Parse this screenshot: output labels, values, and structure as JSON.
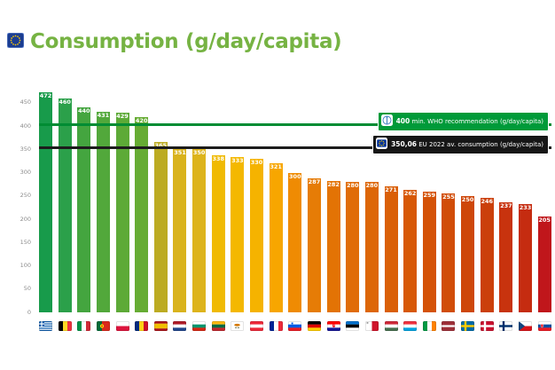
{
  "title": {
    "text": "Consumption (g/day/capita)"
  },
  "chart_data": {
    "type": "bar",
    "title": "Consumption (g/day/capita)",
    "unit": "g/day/capita",
    "categories": [
      "Greece",
      "Belgium",
      "Italy",
      "Portugal",
      "Poland",
      "Romania",
      "Spain",
      "Netherlands",
      "Bulgaria",
      "Lithuania",
      "Cyprus",
      "Austria",
      "France",
      "Slovenia",
      "Germany",
      "Croatia",
      "Estonia",
      "Malta",
      "Hungary",
      "Luxembourg",
      "Ireland",
      "Latvia",
      "Sweden",
      "Denmark",
      "Finland",
      "Czechia",
      "Slovakia"
    ],
    "values": [
      472,
      460,
      440,
      431,
      429,
      420,
      365,
      351,
      350,
      338,
      333,
      330,
      321,
      300,
      287,
      282,
      280,
      280,
      271,
      262,
      259,
      255,
      250,
      246,
      237,
      233,
      205
    ],
    "bar_colors": [
      "#189b4b",
      "#2ba04a",
      "#44a53f",
      "#52a83b",
      "#5daa37",
      "#66ac33",
      "#bcab22",
      "#d9b31d",
      "#ddb41c",
      "#f0ba02",
      "#f4b800",
      "#f5b300",
      "#f7a600",
      "#ef8b03",
      "#e67c06",
      "#e37305",
      "#e06c08",
      "#dd6607",
      "#da5f06",
      "#d75806",
      "#d45207",
      "#d14d08",
      "#ce4709",
      "#cb400b",
      "#c8330e",
      "#c52c10",
      "#c0161b"
    ],
    "ylim": [
      0,
      480
    ],
    "yticks": [
      0,
      50,
      100,
      150,
      200,
      250,
      300,
      350,
      400,
      450
    ],
    "grid": false,
    "legend_position": "right-inside",
    "annotations": [
      {
        "id": "who-recommendation",
        "number": "400",
        "text": "min. WHO recommendation  (g/day/capita)",
        "value": 400,
        "line_color": "#008c33",
        "box_color": "#009a39",
        "icon": "who-icon"
      },
      {
        "id": "eu-average",
        "number": "350,06",
        "text": "EU 2022 av. consumption (g/day/capita)",
        "value": 350.06,
        "line_color": "#1c1c1c",
        "box_color": "#161616",
        "icon": "eu-icon"
      }
    ]
  }
}
